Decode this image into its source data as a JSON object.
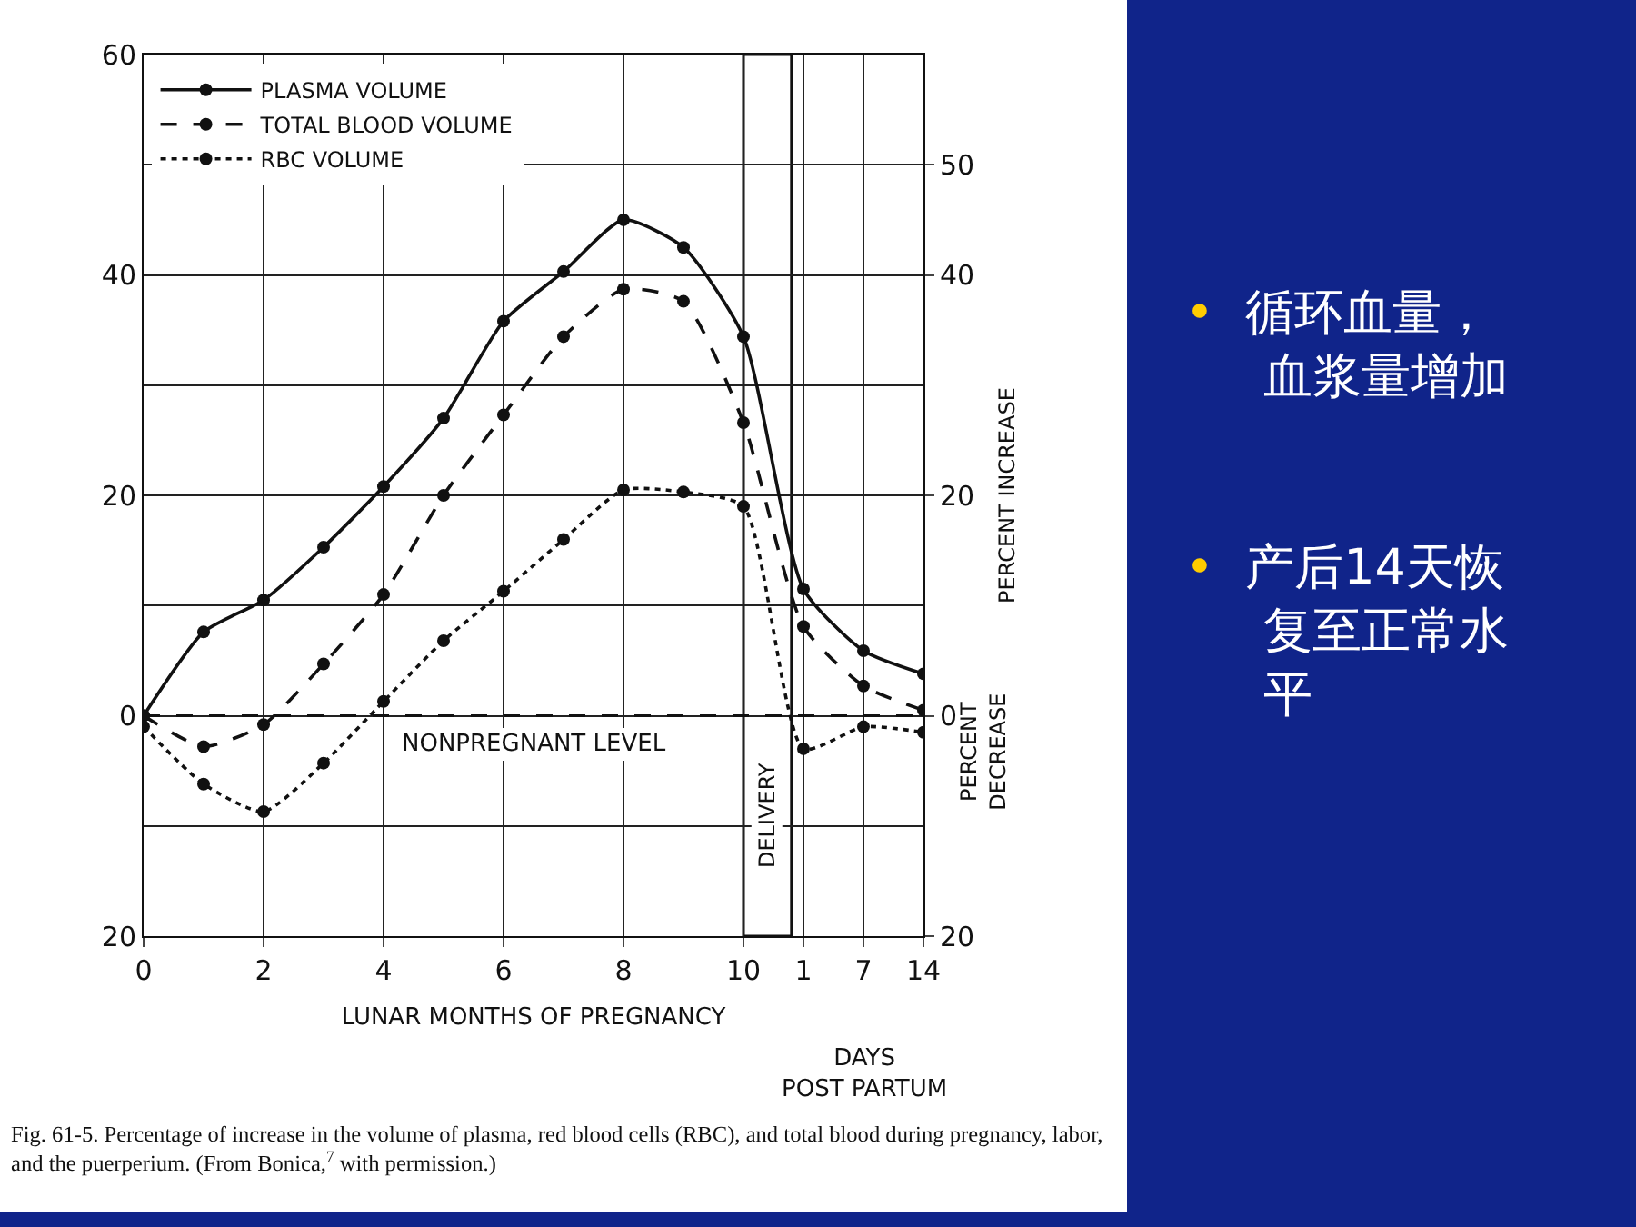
{
  "chart_data": {
    "type": "line",
    "xlabel": "LUNAR MONTHS OF PREGNANCY",
    "y2label": "PERCENT INCREASE",
    "categories": [
      "0",
      null,
      "2",
      null,
      "4",
      null,
      "6",
      null,
      "8",
      null,
      "10",
      "1",
      "7",
      "14"
    ],
    "series": [
      {
        "name": "PLASMA VOLUME",
        "color": "#111111",
        "line_style": "solid",
        "values": [
          0,
          7.6,
          10.5,
          15.3,
          20.8,
          27,
          35.8,
          40.3,
          45,
          42.5,
          34.4,
          11.5,
          5.9,
          3.8
        ]
      },
      {
        "name": "TOTAL BLOOD VOLUME",
        "color": "#111111",
        "line_style": "dashed",
        "values": [
          0,
          -2.8,
          -0.8,
          4.7,
          11,
          20,
          27.3,
          34.4,
          38.7,
          37.6,
          26.6,
          8.1,
          2.7,
          0.5
        ]
      },
      {
        "name": "RBC VOLUME",
        "color": "#111111",
        "line_style": "dotted",
        "values": [
          -1,
          -6.2,
          -8.7,
          -4.3,
          1.3,
          6.8,
          11.3,
          16,
          20.5,
          20.3,
          19,
          -3,
          -1,
          -1.5
        ]
      }
    ],
    "marker": "circle",
    "ylim": [
      -20,
      60
    ],
    "yticks": [
      {
        "value": -20,
        "label": "20"
      },
      {
        "value": -10,
        "label": null
      },
      0,
      {
        "value": 10,
        "label": null
      },
      20,
      {
        "value": 30,
        "label": null
      },
      40,
      {
        "value": 50,
        "label": null
      },
      60
    ],
    "y2lim": [
      -20,
      60
    ],
    "y2ticks": [
      {
        "value": -20,
        "label": "20"
      },
      0,
      20,
      40,
      50
    ],
    "grid": true,
    "legend": "top left",
    "ref_lines": [
      {
        "axis": "y",
        "value": 0,
        "label": "NONPREGNANT LEVEL",
        "line_style": "dashed",
        "color": "#111111"
      }
    ],
    "bands": [
      {
        "axis": "x",
        "from": "10",
        "to": "1",
        "label": "DELIVERY",
        "color": "#ffffff"
      }
    ],
    "annotations": [
      "PERCENT DECREASE",
      "DAYS POST PARTUM",
      "Fig. 61-5. Percentage of increase in the volume of plasma, red blood cells (RBC), and total blood during pregnancy, labor, and the puerperium. (From Bonica,$^{7}$ with permission.)",
      "• 循环血量，血浆量增加",
      "• 产后14天恢复至正常水平"
    ]
  }
}
